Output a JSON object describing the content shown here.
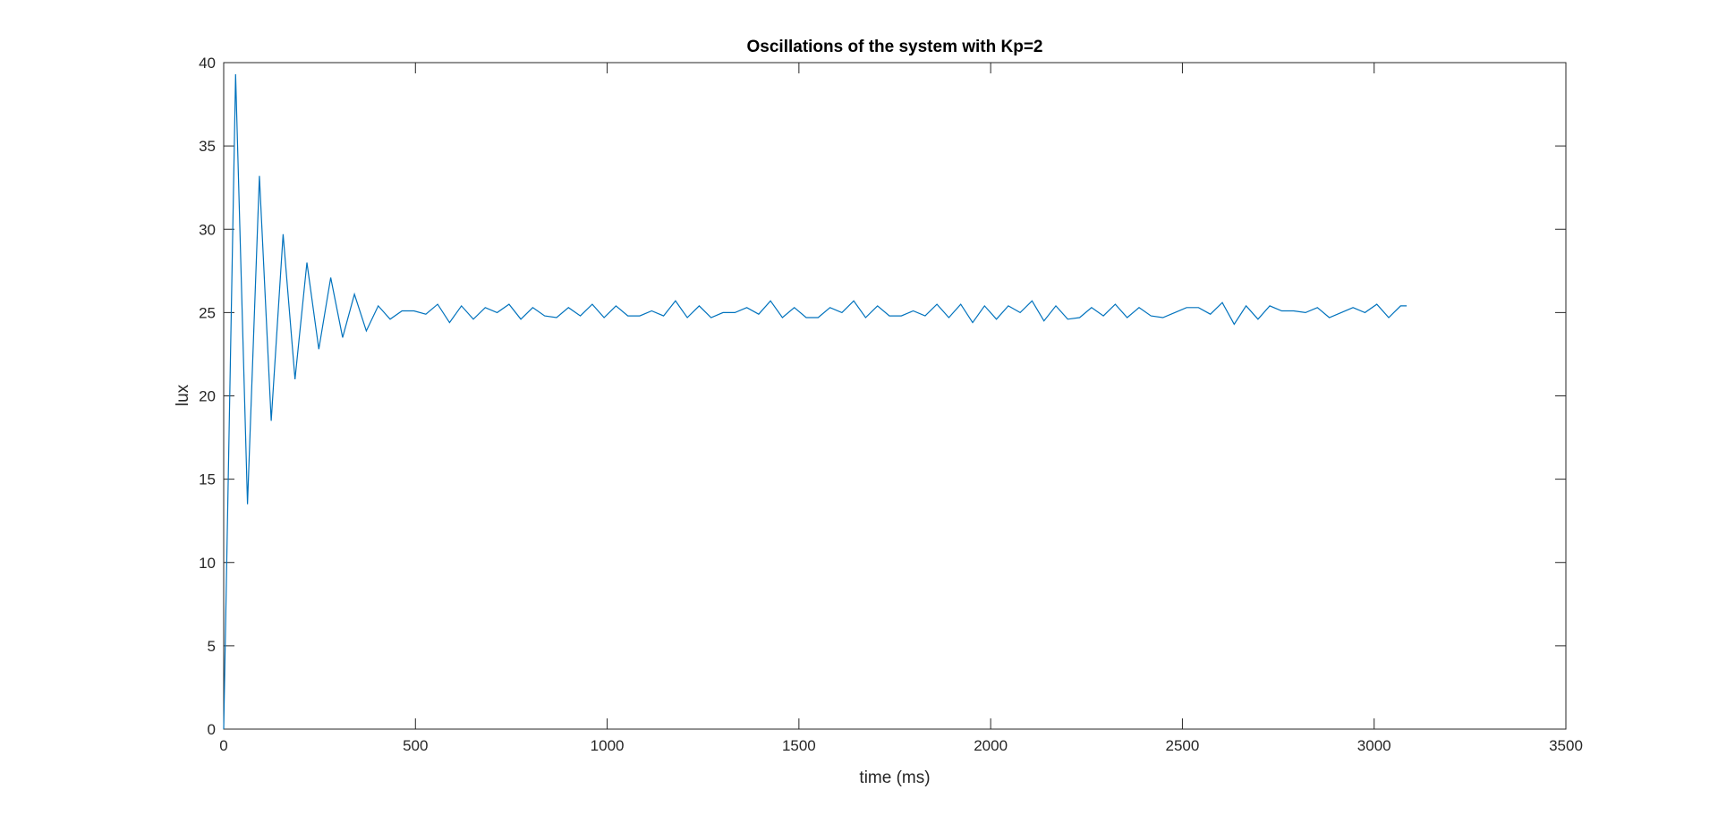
{
  "chart_data": {
    "type": "line",
    "title": "Oscillations of the system with Kp=2",
    "xlabel": "time (ms)",
    "ylabel": "lux",
    "xlim": [
      0,
      3500
    ],
    "ylim": [
      0,
      40
    ],
    "xticks": [
      0,
      500,
      1000,
      1500,
      2000,
      2500,
      3000,
      3500
    ],
    "yticks": [
      0,
      5,
      10,
      15,
      20,
      25,
      30,
      35,
      40
    ],
    "grid": false,
    "legend": "none",
    "series": [
      {
        "color": "#0072bd",
        "x": [
          0,
          31,
          62,
          93,
          124,
          155,
          186,
          217,
          248,
          279,
          310,
          341,
          372,
          403,
          434,
          465,
          496,
          527,
          558,
          589,
          620,
          651,
          682,
          713,
          744,
          775,
          806,
          837,
          868,
          899,
          930,
          961,
          992,
          1023,
          1054,
          1085,
          1116,
          1147,
          1178,
          1209,
          1240,
          1271,
          1302,
          1333,
          1364,
          1395,
          1426,
          1457,
          1488,
          1519,
          1550,
          1581,
          1612,
          1643,
          1674,
          1705,
          1736,
          1767,
          1798,
          1829,
          1860,
          1891,
          1922,
          1953,
          1984,
          2015,
          2046,
          2077,
          2108,
          2139,
          2170,
          2201,
          2232,
          2263,
          2294,
          2325,
          2356,
          2387,
          2418,
          2449,
          2480,
          2511,
          2542,
          2573,
          2604,
          2635,
          2666,
          2697,
          2728,
          2759,
          2790,
          2821,
          2852,
          2883,
          2914,
          2945,
          2976,
          3007,
          3038,
          3069,
          3085
        ],
        "y": [
          0,
          39.3,
          13.5,
          33.2,
          18.5,
          29.7,
          21.0,
          28.0,
          22.8,
          27.1,
          23.5,
          26.1,
          23.9,
          25.4,
          24.6,
          25.1,
          25.1,
          24.9,
          25.5,
          24.4,
          25.4,
          24.6,
          25.3,
          25.0,
          25.5,
          24.6,
          25.3,
          24.8,
          24.7,
          25.3,
          24.8,
          25.5,
          24.7,
          25.4,
          24.8,
          24.8,
          25.1,
          24.8,
          25.7,
          24.7,
          25.4,
          24.7,
          25.0,
          25.0,
          25.3,
          24.9,
          25.7,
          24.7,
          25.3,
          24.7,
          24.7,
          25.3,
          25.0,
          25.7,
          24.7,
          25.4,
          24.8,
          24.8,
          25.1,
          24.8,
          25.5,
          24.7,
          25.5,
          24.4,
          25.4,
          24.6,
          25.4,
          25.0,
          25.7,
          24.5,
          25.4,
          24.6,
          24.7,
          25.3,
          24.8,
          25.5,
          24.7,
          25.3,
          24.8,
          24.7,
          25.0,
          25.3,
          25.3,
          24.9,
          25.6,
          24.3,
          25.4,
          24.6,
          25.4,
          25.1,
          25.1,
          25.0,
          25.3,
          24.7,
          25.0,
          25.3,
          25.0,
          25.5,
          24.7,
          25.4,
          25.4
        ]
      }
    ]
  }
}
